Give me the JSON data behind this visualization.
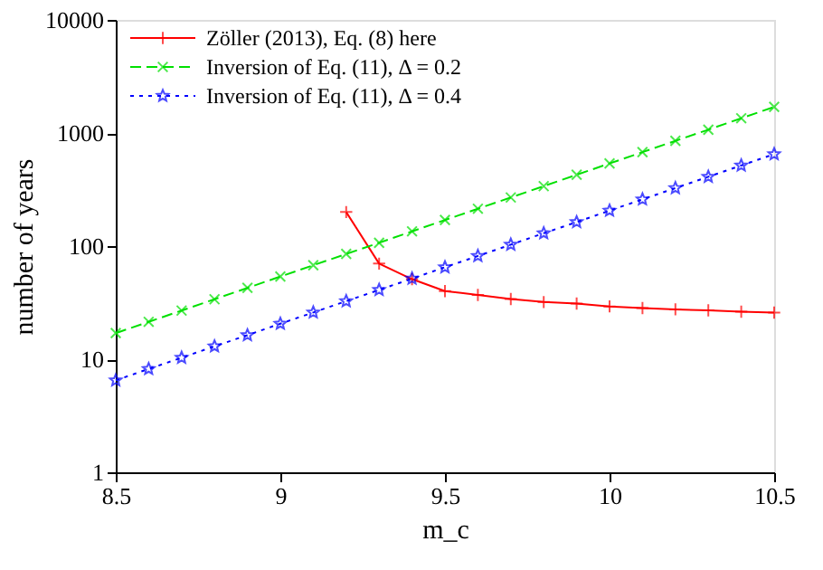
{
  "chart_data": {
    "type": "line",
    "xlabel": "m_c",
    "ylabel": "number of years",
    "x": [
      8.5,
      8.6,
      8.7,
      8.8,
      8.9,
      9.0,
      9.1,
      9.2,
      9.3,
      9.4,
      9.5,
      9.6,
      9.7,
      9.8,
      9.9,
      10.0,
      10.1,
      10.2,
      10.3,
      10.4,
      10.5
    ],
    "series": [
      {
        "name": "Zöller (2013), Eq. (8) here",
        "color": "#ff0000",
        "marker": "cross",
        "line_style": "solid",
        "x": [
          9.2,
          9.3,
          9.4,
          9.5,
          9.6,
          9.7,
          9.8,
          9.9,
          10.0,
          10.1,
          10.2,
          10.3,
          10.4,
          10.5
        ],
        "values": [
          200,
          70,
          51,
          40,
          37,
          34,
          32,
          31,
          29.3,
          28.3,
          27.6,
          27,
          26.3,
          25.8
        ]
      },
      {
        "name": "Inversion of Eq. (11), Δ = 0.2",
        "color": "#00e000",
        "marker": "x",
        "line_style": "dashed",
        "values": [
          17,
          21.4,
          26.9,
          33.9,
          42.7,
          53.8,
          67.7,
          85.2,
          107,
          135,
          170,
          214,
          269,
          339,
          427,
          538,
          677,
          852,
          1070,
          1350,
          1700
        ]
      },
      {
        "name": "Inversion of Eq. (11), Δ = 0.4",
        "color": "#0000ff",
        "marker": "star",
        "line_style": "dotted",
        "values": [
          6.5,
          8.2,
          10.3,
          13,
          16.3,
          20.6,
          25.9,
          32.6,
          41,
          51.6,
          65,
          81.8,
          103,
          130,
          163,
          206,
          259,
          326,
          410,
          516,
          650
        ]
      }
    ],
    "xlim": [
      8.5,
      10.5
    ],
    "xticks": [
      8.5,
      9,
      9.5,
      10,
      10.5
    ],
    "ylim": [
      1,
      10000
    ],
    "yticks": [
      1,
      10,
      100,
      1000,
      10000
    ],
    "log": "y",
    "grid": false,
    "legend": "top left"
  }
}
